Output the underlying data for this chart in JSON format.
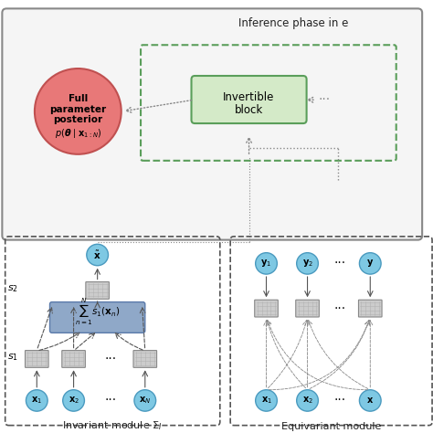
{
  "title": "Inference phase in e",
  "bg_color": "#ffffff",
  "outer_box_color": "#888888",
  "dashed_box_color": "#5a9e5a",
  "inv_block_fill": "#d4eac8",
  "inv_block_edge": "#5a9e5a",
  "posterior_fill": "#e87878",
  "posterior_edge": "#c05050",
  "node_fill": "#7ec8e3",
  "node_edge": "#4a9abf",
  "sum_box_fill": "#8fa8c8",
  "sum_box_edge": "#5a7aaa",
  "nn_box_fill": "#e8e8e8",
  "nn_box_edge": "#888888",
  "module_box_color": "#555555",
  "label_inv": "Invariant module Σ",
  "label_inv_sub": "I",
  "label_equi": "Equivariant module",
  "arrow_color": "#555555",
  "dashed_arrow_color": "#888888"
}
